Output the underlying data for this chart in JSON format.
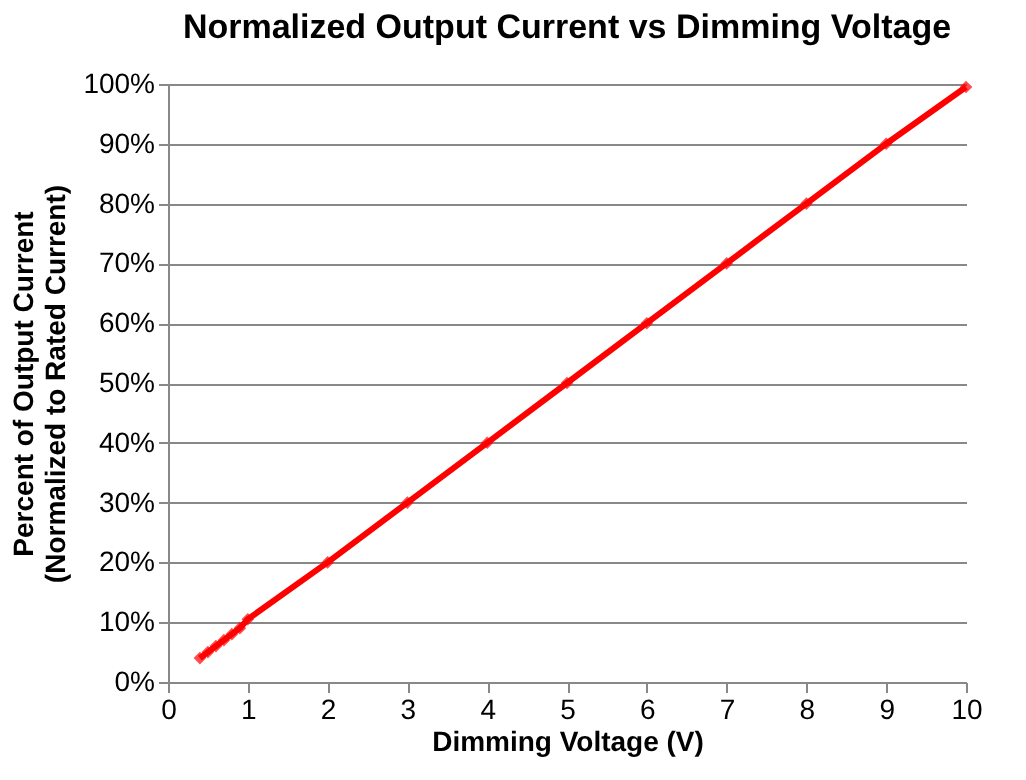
{
  "chart_data": {
    "type": "line",
    "title": "Normalized Output Current vs Dimming Voltage",
    "xlabel": "Dimming Voltage (V)",
    "ylabel": "Percent of Output Current (Normalized to Rated Current)",
    "x": [
      0.4,
      0.5,
      0.6,
      0.7,
      0.8,
      0.9,
      1,
      2,
      3,
      4,
      5,
      6,
      7,
      8,
      9,
      10
    ],
    "series": [
      {
        "color": "#ff0000",
        "values": [
          4,
          5,
          6,
          7,
          8,
          9,
          10.5,
          20,
          30,
          40,
          50,
          60,
          70,
          80,
          90,
          99.5
        ]
      }
    ],
    "xlim": [
      0,
      10
    ],
    "xticks": [
      0,
      1,
      2,
      3,
      4,
      5,
      6,
      7,
      8,
      9,
      10
    ],
    "ylim": [
      0,
      100
    ],
    "yticks": [
      {
        "value": 0,
        "label": "0%"
      },
      {
        "value": 10,
        "label": "10%"
      },
      {
        "value": 20,
        "label": "20%"
      },
      {
        "value": 30,
        "label": "30%"
      },
      {
        "value": 40,
        "label": "40%"
      },
      {
        "value": 50,
        "label": "50%"
      },
      {
        "value": 60,
        "label": "60%"
      },
      {
        "value": 70,
        "label": "70%"
      },
      {
        "value": 80,
        "label": "80%"
      },
      {
        "value": 90,
        "label": "90%"
      },
      {
        "value": 100,
        "label": "100%"
      }
    ],
    "grid": "y",
    "marker": "diamond",
    "line_style": "solid"
  }
}
